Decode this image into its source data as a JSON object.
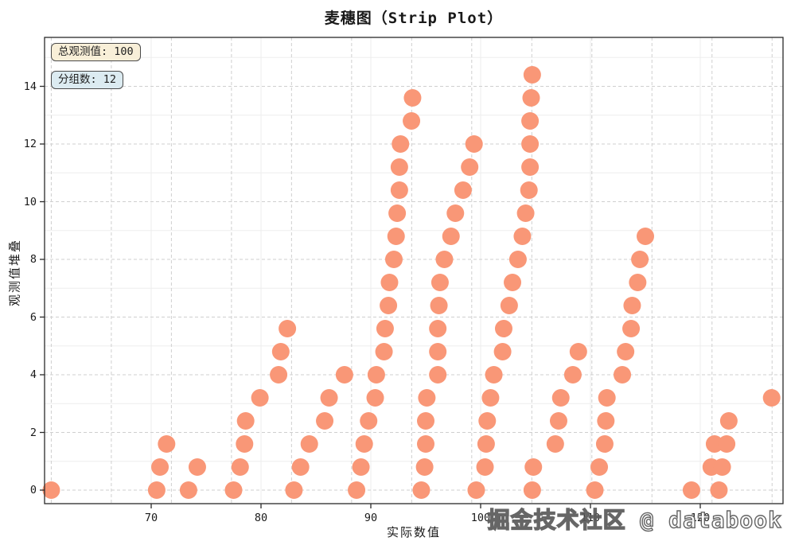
{
  "page": {
    "background": "#ffffff",
    "watermark": "掘金技术社区 @ databook"
  },
  "chart_data": {
    "type": "strip",
    "title": "麦穗图（Strip Plot）",
    "xlabel": "实际数值",
    "ylabel": "观测值堆叠",
    "x_ticks": [
      70,
      80,
      90,
      100,
      110,
      120
    ],
    "y_ticks": [
      0,
      2,
      4,
      6,
      8,
      10,
      12,
      14
    ],
    "xlim": [
      60.3,
      127.5
    ],
    "ylim": [
      -0.5,
      15.7
    ],
    "stack_step": 0.8,
    "total_observations": 100,
    "group_count": 12,
    "dot_color": "#f99777",
    "grid_dash_color": "#cfcfcf",
    "grid_faint_color": "#ededed",
    "frame_color": "#2a2a2a",
    "legend_position": "none",
    "annotations": [
      {
        "label": "总观测值: 100",
        "bg": "#f8efd8"
      },
      {
        "label": "分组数: 12",
        "bg": "#dcebf1"
      }
    ],
    "dashed_vlines": {
      "start": 60.9,
      "step": 5.47,
      "count": 13
    },
    "groups": [
      {
        "x": [
          60.9
        ]
      },
      {
        "x": [
          70.5,
          70.8,
          71.4
        ]
      },
      {
        "x": [
          73.4,
          74.2
        ]
      },
      {
        "x": [
          77.5,
          78.1,
          78.5,
          78.6,
          79.9,
          81.6,
          81.8,
          82.4
        ]
      },
      {
        "x": [
          83.0,
          83.6,
          84.4,
          85.8,
          86.2,
          87.6
        ]
      },
      {
        "x": [
          88.7,
          89.1,
          89.4,
          89.8,
          90.4,
          90.5,
          91.2,
          91.3,
          91.6,
          91.7,
          92.1,
          92.3,
          92.4,
          92.6,
          92.6,
          92.7,
          93.7,
          93.8
        ]
      },
      {
        "x": [
          94.6,
          94.9,
          95.0,
          95.0,
          95.1,
          96.1,
          96.1,
          96.1,
          96.2,
          96.3,
          96.7,
          97.3,
          97.7,
          98.4,
          99.0,
          99.4
        ]
      },
      {
        "x": [
          99.6,
          100.4,
          100.5,
          100.6,
          100.9,
          101.2,
          102.0,
          102.1,
          102.6,
          102.9,
          103.4,
          103.8,
          104.1,
          104.4,
          104.5,
          104.5,
          104.5,
          104.6,
          104.7
        ]
      },
      {
        "x": [
          104.7,
          104.8,
          106.8,
          107.1,
          107.3,
          108.4,
          108.9
        ]
      },
      {
        "x": [
          110.4,
          110.8,
          111.3,
          111.4,
          111.5,
          112.9,
          113.2,
          113.7,
          113.8,
          114.3,
          114.5,
          115.0
        ]
      },
      {
        "x": [
          119.2,
          121.0,
          121.3
        ]
      },
      {
        "x": [
          121.7,
          122.0,
          122.4,
          122.6,
          126.5
        ]
      }
    ]
  }
}
